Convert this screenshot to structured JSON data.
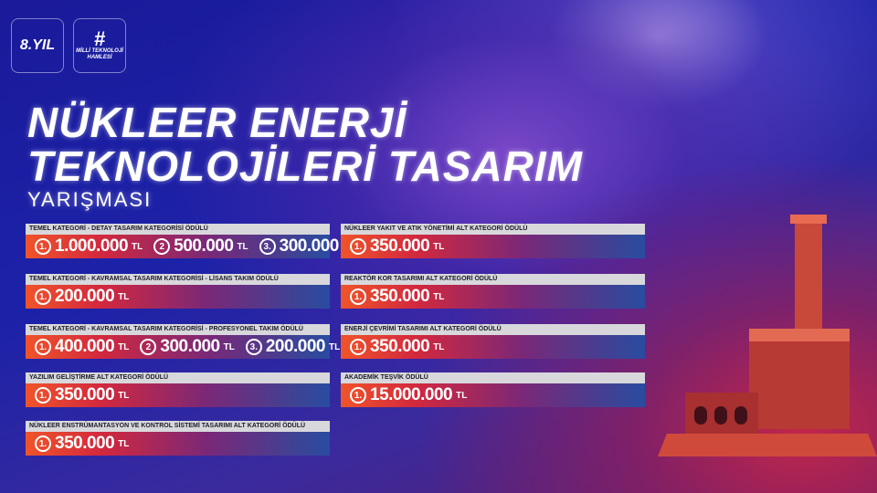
{
  "logos": {
    "anniversary": "8.YIL",
    "campaign_hash": "#",
    "campaign_text": "MİLLİ TEKNOLOJİ HAMLESİ"
  },
  "title": {
    "line1": "NÜKLEER ENERJİ",
    "line2": "TEKNOLOJİLERİ TASARIM",
    "line3": "YARIŞMASI"
  },
  "currency": "TL",
  "left_cards": [
    {
      "label": "TEMEL KATEGORİ - DETAY TASARIM KATEGORİSİ ÖDÜLÜ",
      "prizes": [
        {
          "rank": "1.",
          "amount": "1.000.000"
        },
        {
          "rank": "2",
          "amount": "500.000"
        },
        {
          "rank": "3.",
          "amount": "300.000"
        }
      ]
    },
    {
      "label": "TEMEL KATEGORİ - KAVRAMSAL TASARIM KATEGORİSİ - LİSANS TAKIM ÖDÜLÜ",
      "prizes": [
        {
          "rank": "1.",
          "amount": "200.000"
        }
      ]
    },
    {
      "label": "TEMEL KATEGORİ - KAVRAMSAL TASARIM KATEGORİSİ - PROFESYONEL TAKIM ÖDÜLÜ",
      "prizes": [
        {
          "rank": "1.",
          "amount": "400.000"
        },
        {
          "rank": "2",
          "amount": "300.000"
        },
        {
          "rank": "3.",
          "amount": "200.000"
        }
      ]
    },
    {
      "label": "YAZILIM GELİŞTİRME ALT KATEGORİ ÖDÜLÜ",
      "prizes": [
        {
          "rank": "1.",
          "amount": "350.000"
        }
      ]
    },
    {
      "label": "NÜKLEER ENSTRÜMANTASYON VE KONTROL SİSTEMİ TASARIMI ALT KATEGORİ ÖDÜLÜ",
      "prizes": [
        {
          "rank": "1.",
          "amount": "350.000"
        }
      ]
    }
  ],
  "right_cards": [
    {
      "label": "NÜKLEER YAKIT VE ATIK YÖNETİMİ ALT KATEGORİ ÖDÜLÜ",
      "prizes": [
        {
          "rank": "1.",
          "amount": "350.000"
        }
      ]
    },
    {
      "label": "REAKTÖR KOR TASARIMI ALT KATEGORİ ÖDÜLÜ",
      "prizes": [
        {
          "rank": "1.",
          "amount": "350.000"
        }
      ]
    },
    {
      "label": "ENERJİ ÇEVRİMİ TASARIMI ALT KATEGORİ ÖDÜLÜ",
      "prizes": [
        {
          "rank": "1.",
          "amount": "350.000"
        }
      ]
    },
    {
      "label": "AKADEMİK TEŞVİK ÖDÜLÜ",
      "prizes": [
        {
          "rank": "1.",
          "amount": "15.000.000"
        }
      ]
    }
  ],
  "colors": {
    "bar_start": "#f0542a",
    "bar_mid": "#d2283e",
    "bar_end": "#284ca0",
    "label_bg": "#d8d8dc",
    "reactor": "#d84a3a"
  }
}
